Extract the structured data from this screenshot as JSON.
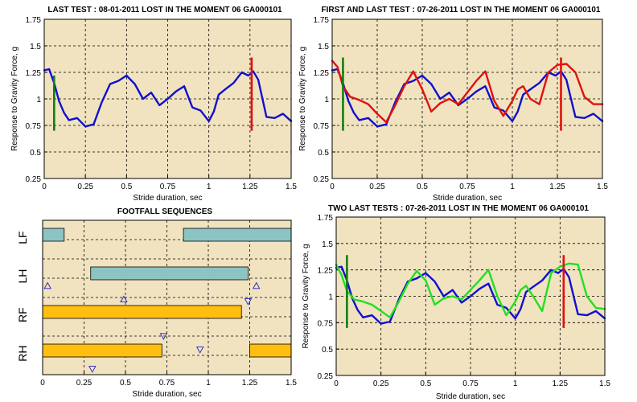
{
  "colors": {
    "plot_bg": "#F1E3BF",
    "grid": "#000000",
    "blue": "#1010D0",
    "red": "#E01010",
    "green": "#20E020",
    "marker_green": "#108010",
    "marker_red": "#E01010",
    "teal_bar": "#8CC4C4",
    "orange_bar": "#FFBE10"
  },
  "chart_data": [
    {
      "id": "last-test",
      "type": "line",
      "title": "LAST TEST : 08-01-2011 LOST IN THE MOMENT 06 GA000101",
      "xlabel": "Stride duration, sec",
      "ylabel": "Response to Gravity Force, g",
      "xlim": [
        0,
        1.5
      ],
      "ylim": [
        0.25,
        1.75
      ],
      "xticks": [
        "0",
        "0.25",
        "0.5",
        "0.75",
        "1",
        "1.25",
        "1.5"
      ],
      "yticks": [
        "0.25",
        "0.5",
        "0.75",
        "1",
        "1.25",
        "1.5",
        "1.75"
      ],
      "grid": true,
      "markers": [
        {
          "x": 0.06,
          "y_from": 0.7,
          "y_to": 1.22,
          "color": "marker_green"
        },
        {
          "x": 1.26,
          "y_from": 0.7,
          "y_to": 1.39,
          "color": "marker_red"
        }
      ],
      "series": [
        {
          "color": "blue",
          "x": [
            0,
            0.03,
            0.06,
            0.09,
            0.12,
            0.15,
            0.2,
            0.25,
            0.3,
            0.35,
            0.4,
            0.45,
            0.5,
            0.55,
            0.6,
            0.65,
            0.7,
            0.75,
            0.8,
            0.85,
            0.9,
            0.95,
            1.0,
            1.03,
            1.06,
            1.1,
            1.15,
            1.2,
            1.24,
            1.27,
            1.3,
            1.35,
            1.4,
            1.45,
            1.5
          ],
          "y": [
            1.27,
            1.28,
            1.15,
            0.98,
            0.87,
            0.8,
            0.82,
            0.74,
            0.76,
            0.97,
            1.14,
            1.17,
            1.22,
            1.14,
            1.0,
            1.06,
            0.94,
            1.0,
            1.07,
            1.12,
            0.92,
            0.89,
            0.79,
            0.88,
            1.04,
            1.09,
            1.15,
            1.25,
            1.22,
            1.26,
            1.18,
            0.83,
            0.82,
            0.86,
            0.79
          ]
        }
      ]
    },
    {
      "id": "first-and-last-test",
      "type": "line",
      "title": "FIRST AND LAST TEST : 07-26-2011 LOST IN THE MOMENT 06 GA000101",
      "xlabel": "Stride duration, sec",
      "ylabel": "Response to Gravity Force, g",
      "xlim": [
        0,
        1.5
      ],
      "ylim": [
        0.25,
        1.75
      ],
      "xticks": [
        "0",
        "0.25",
        "0.5",
        "0.75",
        "1",
        "1.25",
        "1.5"
      ],
      "yticks": [
        "0.25",
        "0.5",
        "0.75",
        "1",
        "1.25",
        "1.5",
        "1.75"
      ],
      "grid": true,
      "markers": [
        {
          "x": 0.06,
          "y_from": 0.7,
          "y_to": 1.39,
          "color": "marker_green"
        },
        {
          "x": 1.27,
          "y_from": 0.7,
          "y_to": 1.39,
          "color": "marker_red"
        }
      ],
      "series": [
        {
          "color": "blue",
          "x": [
            0,
            0.03,
            0.06,
            0.09,
            0.12,
            0.15,
            0.2,
            0.25,
            0.3,
            0.35,
            0.4,
            0.45,
            0.5,
            0.55,
            0.6,
            0.65,
            0.7,
            0.75,
            0.8,
            0.85,
            0.9,
            0.95,
            1.0,
            1.03,
            1.06,
            1.1,
            1.15,
            1.2,
            1.24,
            1.27,
            1.3,
            1.35,
            1.4,
            1.45,
            1.5
          ],
          "y": [
            1.27,
            1.28,
            1.15,
            0.98,
            0.87,
            0.8,
            0.82,
            0.74,
            0.76,
            0.97,
            1.14,
            1.17,
            1.22,
            1.14,
            1.0,
            1.06,
            0.94,
            1.0,
            1.07,
            1.12,
            0.92,
            0.89,
            0.79,
            0.88,
            1.04,
            1.09,
            1.15,
            1.25,
            1.22,
            1.26,
            1.18,
            0.83,
            0.82,
            0.86,
            0.79
          ]
        },
        {
          "color": "red",
          "x": [
            0,
            0.03,
            0.06,
            0.1,
            0.15,
            0.2,
            0.25,
            0.3,
            0.35,
            0.4,
            0.45,
            0.5,
            0.55,
            0.6,
            0.65,
            0.7,
            0.75,
            0.8,
            0.85,
            0.9,
            0.95,
            1.0,
            1.03,
            1.06,
            1.1,
            1.15,
            1.2,
            1.25,
            1.3,
            1.35,
            1.4,
            1.45,
            1.5
          ],
          "y": [
            1.36,
            1.3,
            1.12,
            1.02,
            0.99,
            0.95,
            0.86,
            0.78,
            0.94,
            1.12,
            1.26,
            1.09,
            0.88,
            0.96,
            1.0,
            0.95,
            1.06,
            1.17,
            1.26,
            0.98,
            0.84,
            0.98,
            1.09,
            1.12,
            1.0,
            0.95,
            1.25,
            1.32,
            1.33,
            1.25,
            1.02,
            0.95,
            0.95
          ]
        }
      ]
    },
    {
      "id": "footfall-sequences",
      "type": "bar",
      "title": "FOOTFALL SEQUENCES",
      "xlabel": "Stride duration, sec",
      "xlim": [
        0,
        1.5
      ],
      "xticks": [
        "0",
        "0.25",
        "0.5",
        "0.75",
        "1",
        "1.25",
        "1.5"
      ],
      "categories": [
        "LF",
        "LH",
        "RF",
        "RH"
      ],
      "grid": true,
      "bars": [
        {
          "limb": "LF",
          "start": 0.0,
          "end": 0.13,
          "color": "teal_bar"
        },
        {
          "limb": "LF",
          "start": 0.85,
          "end": 1.5,
          "color": "teal_bar"
        },
        {
          "limb": "LH",
          "start": 0.29,
          "end": 1.24,
          "color": "teal_bar"
        },
        {
          "limb": "RF",
          "start": 0.0,
          "end": 1.2,
          "color": "orange_bar"
        },
        {
          "limb": "RH",
          "start": 0.0,
          "end": 0.72,
          "color": "orange_bar"
        },
        {
          "limb": "RH",
          "start": 1.25,
          "end": 1.5,
          "color": "orange_bar"
        }
      ],
      "event_markers": [
        {
          "x": 0.03,
          "level": 1.7,
          "direction": "up"
        },
        {
          "x": 0.49,
          "level": 2.05,
          "direction": "up"
        },
        {
          "x": 1.29,
          "level": 1.7,
          "direction": "up"
        },
        {
          "x": 1.24,
          "level": 2.1,
          "direction": "down"
        },
        {
          "x": 0.73,
          "level": 3.0,
          "direction": "down"
        },
        {
          "x": 0.95,
          "level": 3.35,
          "direction": "down"
        },
        {
          "x": 0.3,
          "level": 3.85,
          "direction": "down"
        }
      ]
    },
    {
      "id": "two-last-tests",
      "type": "line",
      "title": "TWO LAST TESTS : 07-26-2011 LOST IN THE MOMENT 06 GA000101",
      "xlabel": "Stride duration, sec",
      "ylabel": "Response to Gravity Force, g",
      "xlim": [
        0,
        1.5
      ],
      "ylim": [
        0.25,
        1.75
      ],
      "xticks": [
        "0",
        "0.25",
        "0.5",
        "0.75",
        "1",
        "1.25",
        "1.5"
      ],
      "yticks": [
        "0.25",
        "0.5",
        "0.75",
        "1",
        "1.25",
        "1.5",
        "1.75"
      ],
      "grid": true,
      "markers": [
        {
          "x": 0.06,
          "y_from": 0.7,
          "y_to": 1.39,
          "color": "marker_green"
        },
        {
          "x": 1.27,
          "y_from": 0.7,
          "y_to": 1.39,
          "color": "marker_red"
        }
      ],
      "series": [
        {
          "color": "blue",
          "x": [
            0,
            0.03,
            0.06,
            0.09,
            0.12,
            0.15,
            0.2,
            0.25,
            0.3,
            0.35,
            0.4,
            0.45,
            0.5,
            0.55,
            0.6,
            0.65,
            0.7,
            0.75,
            0.8,
            0.85,
            0.9,
            0.95,
            1.0,
            1.03,
            1.06,
            1.1,
            1.15,
            1.2,
            1.24,
            1.27,
            1.3,
            1.35,
            1.4,
            1.45,
            1.5
          ],
          "y": [
            1.27,
            1.28,
            1.15,
            0.98,
            0.87,
            0.8,
            0.82,
            0.74,
            0.76,
            0.97,
            1.14,
            1.17,
            1.22,
            1.14,
            1.0,
            1.06,
            0.94,
            1.0,
            1.07,
            1.12,
            0.92,
            0.89,
            0.79,
            0.88,
            1.04,
            1.09,
            1.15,
            1.25,
            1.22,
            1.26,
            1.18,
            0.83,
            0.82,
            0.86,
            0.79
          ]
        },
        {
          "color": "green",
          "x": [
            0,
            0.03,
            0.06,
            0.1,
            0.15,
            0.2,
            0.25,
            0.3,
            0.35,
            0.4,
            0.45,
            0.5,
            0.55,
            0.6,
            0.65,
            0.7,
            0.75,
            0.8,
            0.85,
            0.9,
            0.95,
            1.0,
            1.03,
            1.06,
            1.1,
            1.15,
            1.2,
            1.25,
            1.3,
            1.35,
            1.4,
            1.45,
            1.5
          ],
          "y": [
            1.3,
            1.2,
            1.05,
            0.97,
            0.95,
            0.92,
            0.86,
            0.8,
            0.95,
            1.12,
            1.24,
            1.15,
            0.92,
            0.98,
            1.0,
            0.97,
            1.06,
            1.15,
            1.25,
            1.0,
            0.82,
            0.95,
            1.06,
            1.1,
            1.0,
            0.86,
            1.22,
            1.28,
            1.31,
            1.3,
            1.0,
            0.89,
            0.88
          ]
        }
      ]
    }
  ]
}
